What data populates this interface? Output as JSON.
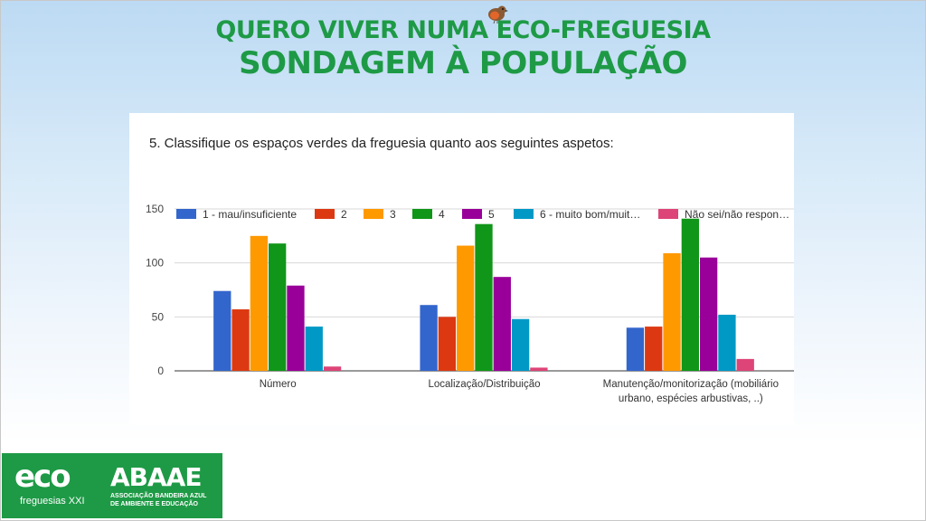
{
  "header": {
    "title_line1": "QUERO VIVER NUMA ECO-FREGUESIA",
    "title_line2": "SONDAGEM À POPULAÇÃO"
  },
  "question": "5. Classifique os espaços verdes da freguesia quanto aos seguintes aspetos:",
  "chart_data": {
    "type": "bar",
    "title": "",
    "xlabel": "",
    "ylabel": "",
    "ylim": [
      0,
      150
    ],
    "yticks": [
      0,
      50,
      100,
      150
    ],
    "grid": true,
    "legend_position": "top",
    "categories": [
      [
        "Número"
      ],
      [
        "Localização/Distribuição"
      ],
      [
        "Manutenção/monitorização (mobiliário",
        "urbano, espécies arbustivas, ..)"
      ]
    ],
    "series": [
      {
        "name": "1 - mau/insuficiente",
        "color": "#3366cc",
        "values": [
          74,
          61,
          40
        ]
      },
      {
        "name": "2",
        "color": "#dc3912",
        "values": [
          57,
          50,
          41
        ]
      },
      {
        "name": "3",
        "color": "#ff9900",
        "values": [
          125,
          116,
          109
        ]
      },
      {
        "name": "4",
        "color": "#109618",
        "values": [
          118,
          136,
          141
        ]
      },
      {
        "name": "5",
        "color": "#990099",
        "values": [
          79,
          87,
          105
        ]
      },
      {
        "name": "6 - muito bom/muit…",
        "color": "#0099c6",
        "values": [
          41,
          48,
          52
        ]
      },
      {
        "name": "Não sei/não respon…",
        "color": "#dd4477",
        "values": [
          4,
          3,
          11
        ]
      }
    ]
  },
  "logos": {
    "eco": "eco",
    "freguesias": "freguesias XXI",
    "abaae": "ABAAE",
    "assoc_line1": "ASSOCIAÇÃO BANDEIRA AZUL",
    "assoc_line2": "DE AMBIENTE E EDUCAÇÃO"
  }
}
